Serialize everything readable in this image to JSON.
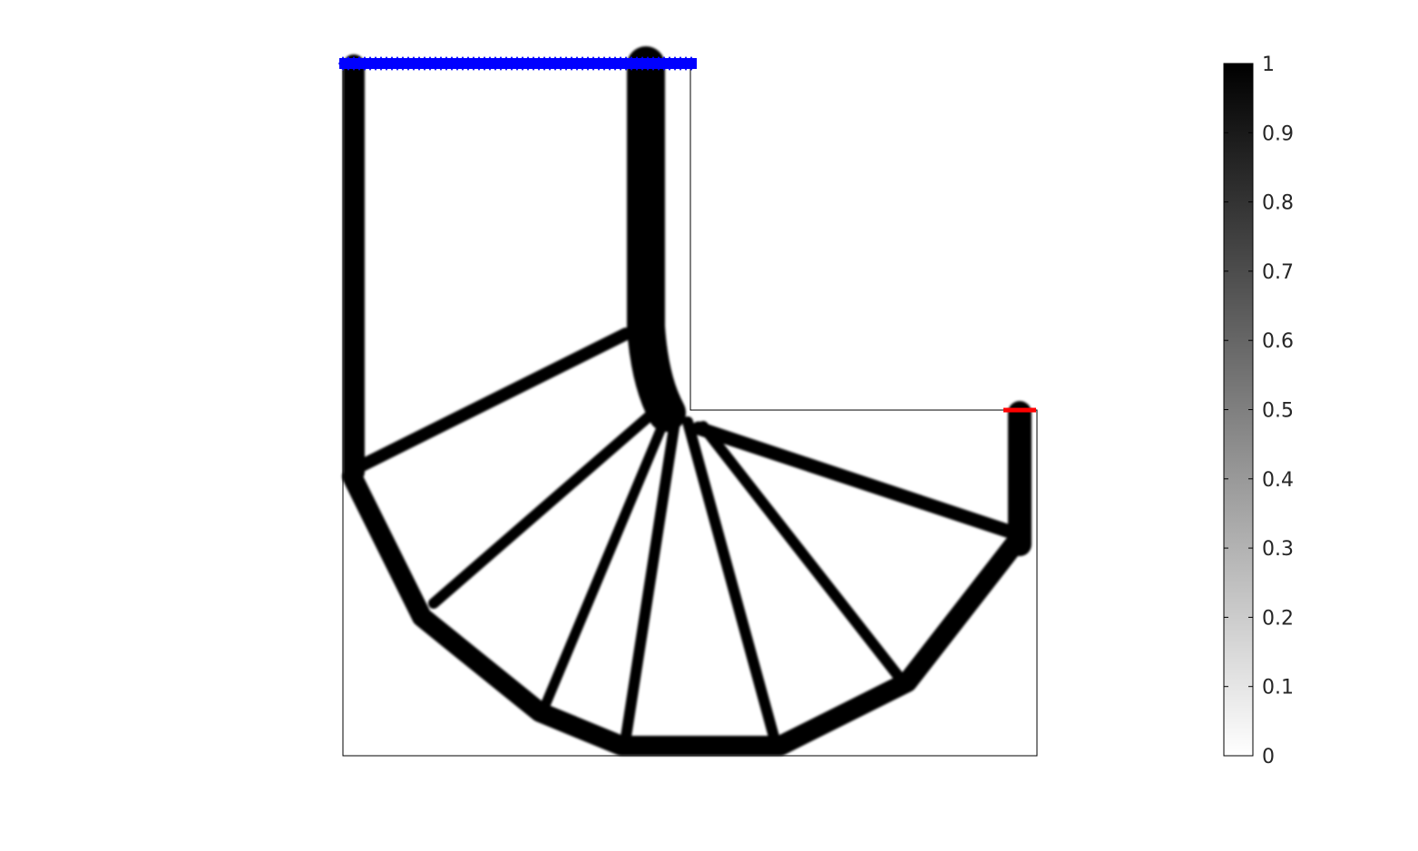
{
  "figure": {
    "colormap": "gray (reversed: 0 = white, 1 = black)",
    "colors": {
      "background": "#ffffff",
      "material": "#000000",
      "support_markers": "#0000ff",
      "load_marker": "#ff0000",
      "axis_line": "#000000",
      "tick_text": "#262626"
    },
    "colorbar": {
      "min": 0,
      "max": 1,
      "ticks": [
        "0",
        "0.1",
        "0.2",
        "0.3",
        "0.4",
        "0.5",
        "0.6",
        "0.7",
        "0.8",
        "0.9",
        "1"
      ]
    },
    "domain": "L-shaped design region",
    "support": "fixed boundary along top edge (blue markers)",
    "load": "point load at inner corner of right arm (red marker)"
  }
}
